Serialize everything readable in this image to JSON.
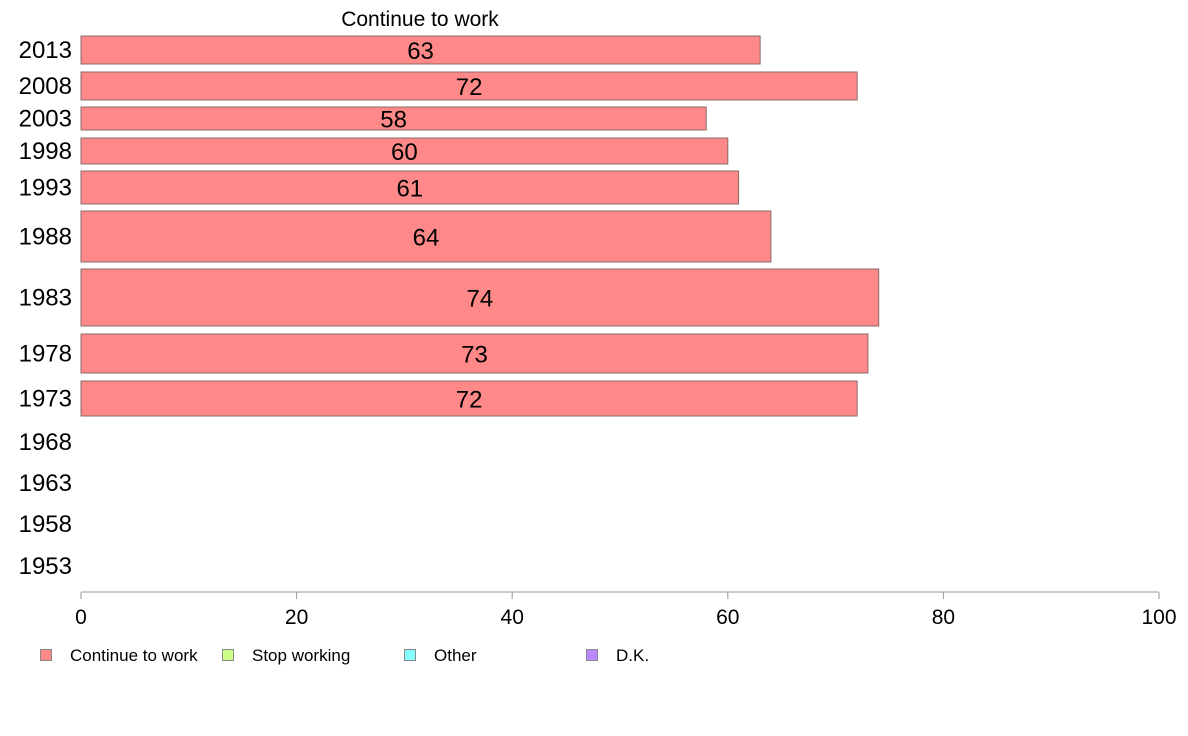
{
  "chart_data": {
    "type": "bar",
    "orientation": "horizontal",
    "title": "Continue to work",
    "categories": [
      "2013",
      "2008",
      "2003",
      "1998",
      "1993",
      "1988",
      "1983",
      "1978",
      "1973",
      "1968",
      "1963",
      "1958",
      "1953"
    ],
    "series": [
      {
        "name": "Continue to work",
        "color": "#ff8888",
        "values": [
          63,
          72,
          58,
          60,
          61,
          64,
          74,
          73,
          72,
          null,
          null,
          null,
          null
        ],
        "labels": [
          "63",
          "72",
          "58",
          "60",
          "61",
          "64",
          "74",
          "73",
          "72",
          null,
          null,
          null,
          null
        ]
      }
    ],
    "xlim": [
      0,
      100
    ],
    "xticks": [
      "0",
      "20",
      "40",
      "60",
      "80",
      "100"
    ],
    "grid": false,
    "legend": {
      "placement": "bottom",
      "items": [
        {
          "label": "Continue to work",
          "color": "#ff8888"
        },
        {
          "label": "Stop working",
          "color": "#ccff88"
        },
        {
          "label": "Other",
          "color": "#88ffff"
        },
        {
          "label": "D.K.",
          "color": "#bb88ff"
        }
      ]
    }
  }
}
